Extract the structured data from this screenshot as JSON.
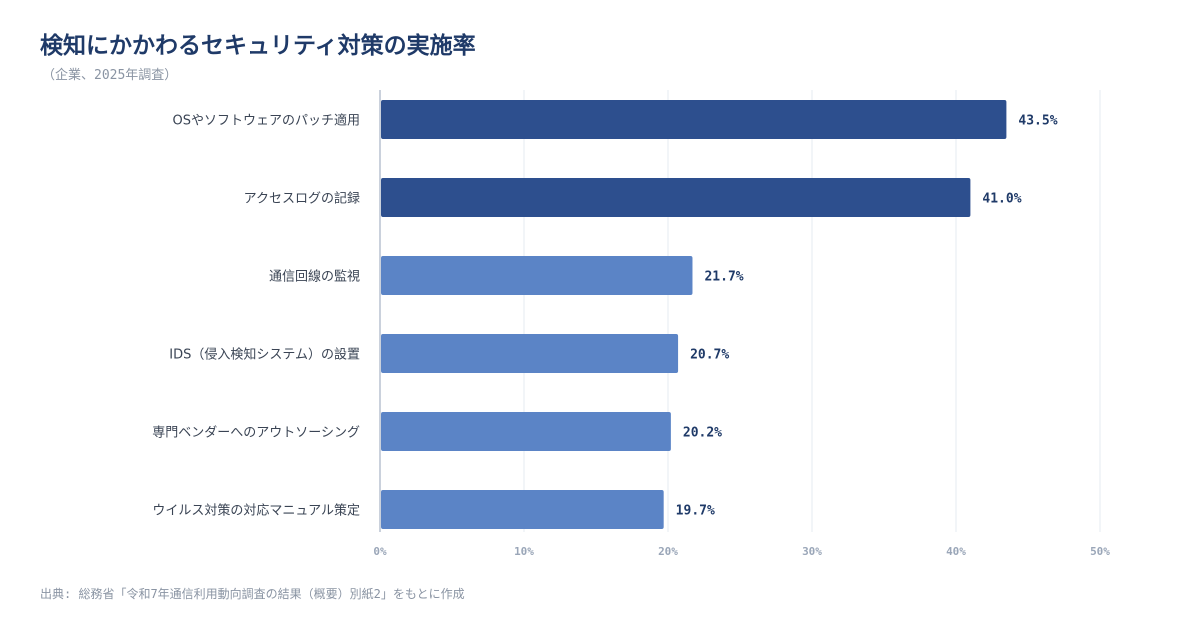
{
  "title": "検知にかかわるセキュリティ対策の実施率",
  "subtitle": "（企業、2025年調査）",
  "source": "出典: 総務省「令和7年通信利用動向調査の結果（概要）別紙2」をもとに作成",
  "colors": {
    "bar_top": "#2d4f8e",
    "bar_rest": "#5b84c6",
    "grid": "#e6ebf2",
    "axis": "#b8c2d0"
  },
  "chart_data": {
    "type": "bar",
    "orientation": "horizontal",
    "title": "検知にかかわるセキュリティ対策の実施率",
    "subtitle": "（企業、2025年調査）",
    "categories": [
      "OSやソフトウェアのパッチ適用",
      "アクセスログの記録",
      "通信回線の監視",
      "IDS（侵入検知システム）の設置",
      "専門ベンダーへのアウトソーシング",
      "ウイルス対策の対応マニュアル策定"
    ],
    "values": [
      43.5,
      41.0,
      21.7,
      20.7,
      20.2,
      19.7
    ],
    "value_labels": [
      "43.5%",
      "41.0%",
      "21.7%",
      "20.7%",
      "20.2%",
      "19.7%"
    ],
    "highlighted": [
      true,
      true,
      false,
      false,
      false,
      false
    ],
    "xlim": [
      0,
      50
    ],
    "ticks": [
      0,
      10,
      20,
      30,
      40,
      50
    ],
    "tick_labels": [
      "0%",
      "10%",
      "20%",
      "30%",
      "40%",
      "50%"
    ],
    "grid": true
  }
}
